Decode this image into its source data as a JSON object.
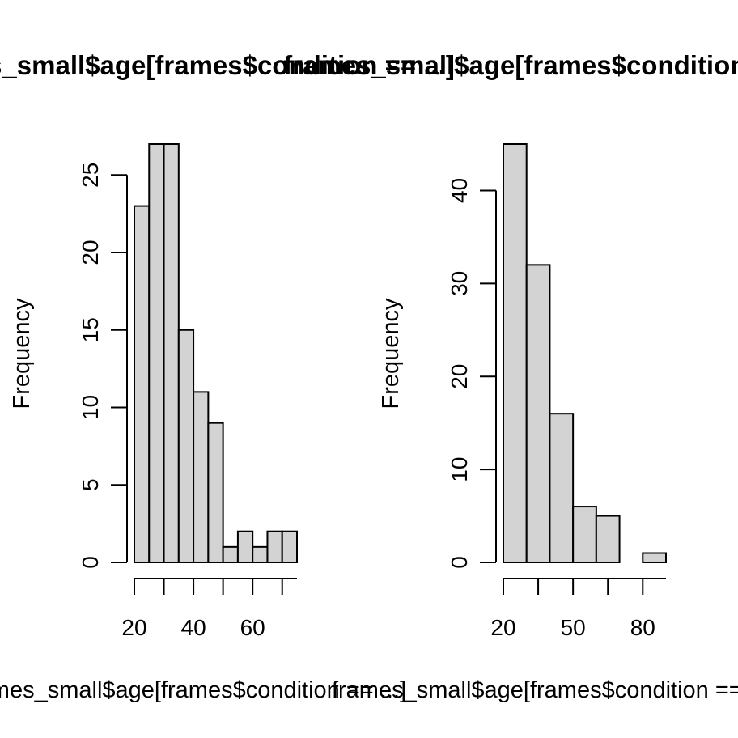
{
  "chart_data": [
    {
      "type": "bar",
      "title": "frames_small$age[frames$condition == ...]",
      "xlabel": "frames_small$age[frames$condition == ...]",
      "ylabel": "Frequency",
      "bin_edges": [
        20,
        25,
        30,
        35,
        40,
        45,
        50,
        55,
        60,
        65,
        70,
        75
      ],
      "values": [
        23,
        27,
        27,
        15,
        11,
        9,
        1,
        2,
        1,
        2,
        2
      ],
      "xticks": [
        20,
        40,
        60
      ],
      "xtick_labels": [
        "20",
        "40",
        "60"
      ],
      "xlim": [
        20,
        75
      ],
      "yticks": [
        0,
        5,
        10,
        15,
        20,
        25
      ],
      "ytick_labels": [
        "0",
        "5",
        "10",
        "15",
        "20",
        "25"
      ],
      "ylim": [
        0,
        27
      ],
      "bar_color": "#d3d3d3",
      "grid": false,
      "legend": "none"
    },
    {
      "type": "bar",
      "title": "frames_small$age[frames$condition == ...]",
      "xlabel": "frames_small$age[frames$condition == ...]",
      "ylabel": "Frequency",
      "bin_edges": [
        20,
        30,
        40,
        50,
        60,
        70,
        80,
        90
      ],
      "values": [
        45,
        32,
        16,
        6,
        5,
        0,
        1
      ],
      "xticks": [
        20,
        50,
        80
      ],
      "xtick_labels": [
        "20",
        "50",
        "80"
      ],
      "xlim": [
        20,
        90
      ],
      "yticks": [
        0,
        10,
        20,
        30,
        40
      ],
      "ytick_labels": [
        "0",
        "10",
        "20",
        "30",
        "40"
      ],
      "ylim": [
        0,
        45
      ],
      "bar_color": "#d3d3d3",
      "grid": false,
      "legend": "none"
    }
  ]
}
